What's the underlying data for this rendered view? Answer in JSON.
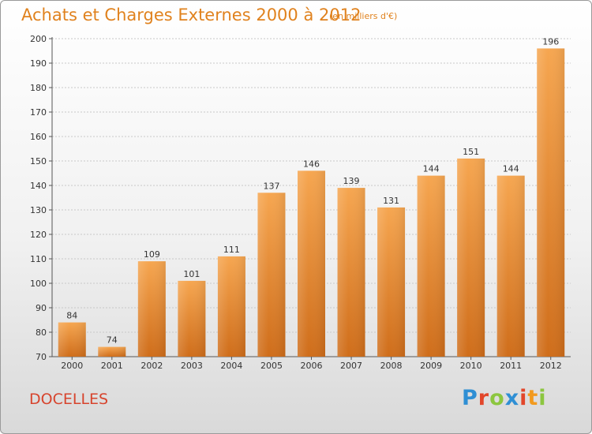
{
  "header": {
    "title": "Achats et Charges Externes 2000 à 2012",
    "unit": "(en milliers d'€)"
  },
  "footer": {
    "commune": "DOCELLES",
    "logo_text": "Proxiti",
    "logo_colors": [
      "#2f8fd4",
      "#e2462a",
      "#8cc63f",
      "#2f8fd4",
      "#e2462a",
      "#f29a1f",
      "#8cc63f"
    ]
  },
  "colors": {
    "accent": "#e0821e",
    "commune": "#d7442d",
    "bar_top": "#f6a650",
    "bar_bottom": "#cf6d1a",
    "grid": "#c8c8c8"
  },
  "chart_data": {
    "type": "bar",
    "categories": [
      "2000",
      "2001",
      "2002",
      "2003",
      "2004",
      "2005",
      "2006",
      "2007",
      "2008",
      "2009",
      "2010",
      "2011",
      "2012"
    ],
    "values": [
      84,
      74,
      109,
      101,
      111,
      137,
      146,
      139,
      131,
      144,
      151,
      144,
      196
    ],
    "data_labels": [
      "84",
      "74",
      "109",
      "101",
      "111",
      "137",
      "146",
      "139",
      "131",
      "144",
      "151",
      "144",
      "196"
    ],
    "ylim": [
      70,
      200
    ],
    "yticks": [
      70,
      80,
      90,
      100,
      110,
      120,
      130,
      140,
      150,
      160,
      170,
      180,
      190,
      200
    ],
    "grid": true,
    "xlabel": "",
    "ylabel": ""
  }
}
